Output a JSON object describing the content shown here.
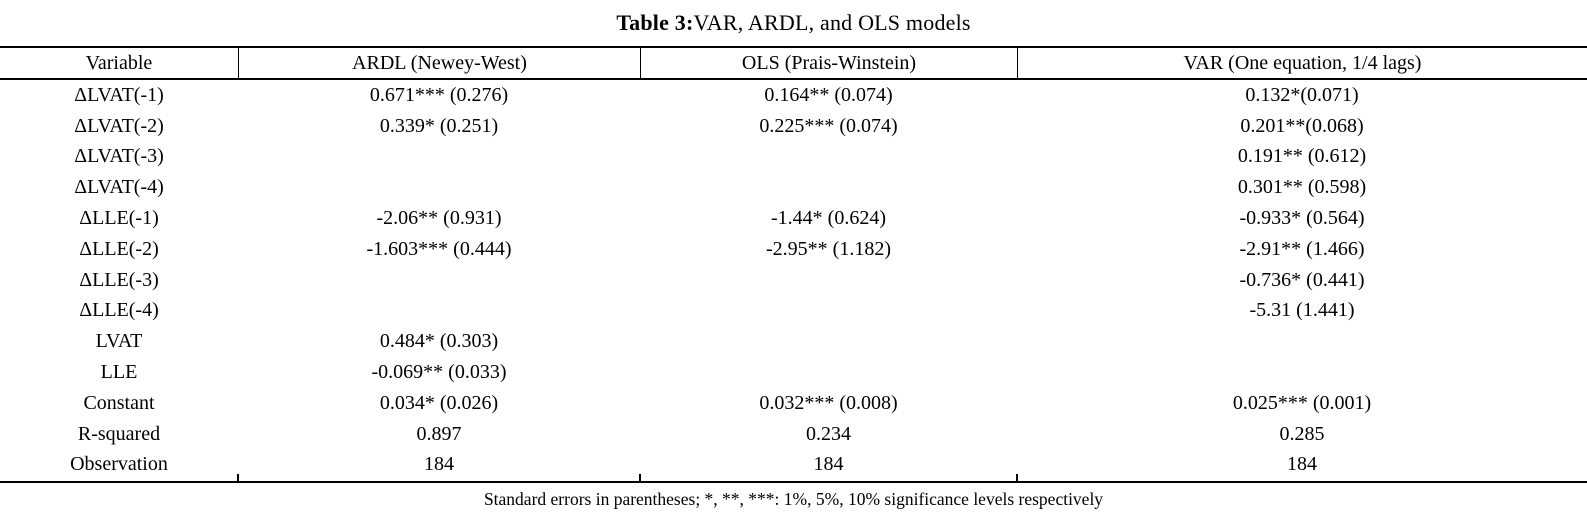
{
  "title": {
    "label": "Table 3:",
    "rest": " VAR, ARDL, and OLS models"
  },
  "columns": [
    "Variable",
    "ARDL (Newey-West)",
    "OLS (Prais-Winstein)",
    "VAR (One equation, 1/4 lags)"
  ],
  "rows": [
    {
      "variable": "ΔLVAT(-1)",
      "ardl": "0.671*** (0.276)",
      "ols": "0.164** (0.074)",
      "var": "0.132*(0.071)"
    },
    {
      "variable": "ΔLVAT(-2)",
      "ardl": "0.339* (0.251)",
      "ols": "0.225*** (0.074)",
      "var": "0.201**(0.068)"
    },
    {
      "variable": "ΔLVAT(-3)",
      "ardl": "",
      "ols": "",
      "var": "0.191** (0.612)"
    },
    {
      "variable": "ΔLVAT(-4)",
      "ardl": "",
      "ols": "",
      "var": "0.301** (0.598)"
    },
    {
      "variable": "ΔLLE(-1)",
      "ardl": "-2.06** (0.931)",
      "ols": "-1.44* (0.624)",
      "var": "-0.933* (0.564)"
    },
    {
      "variable": "ΔLLE(-2)",
      "ardl": "-1.603*** (0.444)",
      "ols": "-2.95** (1.182)",
      "var": "-2.91** (1.466)"
    },
    {
      "variable": "ΔLLE(-3)",
      "ardl": "",
      "ols": "",
      "var": "-0.736* (0.441)"
    },
    {
      "variable": "ΔLLE(-4)",
      "ardl": "",
      "ols": "",
      "var": "-5.31 (1.441)"
    },
    {
      "variable": "LVAT",
      "ardl": "0.484* (0.303)",
      "ols": "",
      "var": ""
    },
    {
      "variable": "LLE",
      "ardl": "-0.069** (0.033)",
      "ols": "",
      "var": ""
    },
    {
      "variable": "Constant",
      "ardl": "0.034* (0.026)",
      "ols": "0.032*** (0.008)",
      "var": "0.025*** (0.001)"
    },
    {
      "variable": "R-squared",
      "ardl": "0.897",
      "ols": "0.234",
      "var": "0.285"
    },
    {
      "variable": "Observation",
      "ardl": "184",
      "ols": "184",
      "var": "184"
    }
  ],
  "footnote": "Standard errors in parentheses; *, **, ***: 1%, 5%, 10% significance levels respectively",
  "colors": {
    "background": "#ffffff",
    "text": "#000000",
    "rule": "#000000"
  }
}
